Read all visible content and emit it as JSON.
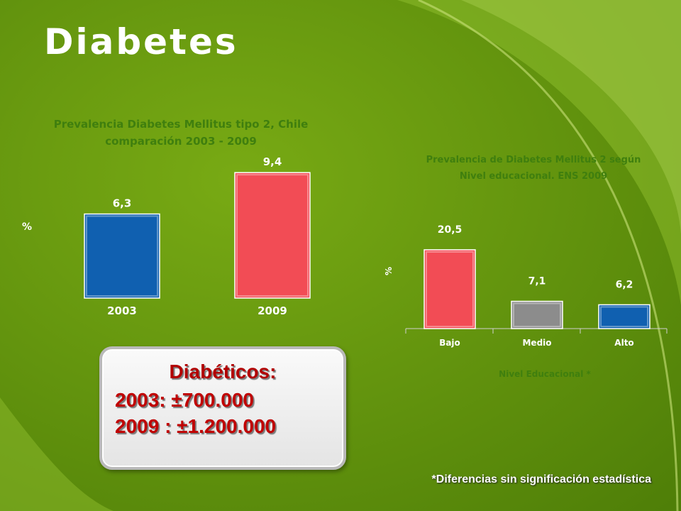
{
  "slide": {
    "title": "Diabetes",
    "callout": {
      "heading": "Diabéticos:",
      "lines": [
        "2003:  ±700.000",
        "2009 :  ±1.200.000"
      ]
    },
    "footnote": "*Diferencias sin significación estadística"
  },
  "colors": {
    "green_bg": "#6a9a10",
    "accent_text": "#3f7f0e",
    "blue_bar": "#1060b0",
    "red_bar": "#f24c55",
    "gray_bar": "#8c8c8c"
  },
  "chart_data": [
    {
      "type": "bar",
      "title": "Prevalencia Diabetes Mellitus tipo 2, Chile comparación 2003 - 2009",
      "title_lines": [
        "Prevalencia Diabetes Mellitus tipo 2, Chile",
        "comparación 2003 - 2009"
      ],
      "ylabel": "%",
      "xlabel": "",
      "categories": [
        "2003",
        "2009"
      ],
      "values": [
        6.3,
        9.4
      ],
      "value_labels": [
        "6,3",
        "9,4"
      ],
      "colors": [
        "#1060b0",
        "#f24c55"
      ],
      "ylim": [
        0,
        10
      ],
      "grid": false,
      "legend": "none"
    },
    {
      "type": "bar",
      "title": "Prevalencia de Diabetes Mellitus 2 según Nivel educacional. ENS 2009",
      "title_lines": [
        "Prevalencia de Diabetes Mellitus 2 según",
        "Nivel educacional. ENS 2009"
      ],
      "ylabel": "%",
      "xlabel": "Nivel Educacional *",
      "categories": [
        "Bajo",
        "Medio",
        "Alto"
      ],
      "values": [
        20.5,
        7.1,
        6.2
      ],
      "value_labels": [
        "20,5",
        "7,1",
        "6,2"
      ],
      "colors": [
        "#f24c55",
        "#8c8c8c",
        "#1060b0"
      ],
      "ylim": [
        0,
        22
      ],
      "grid": false,
      "legend": "none"
    }
  ]
}
